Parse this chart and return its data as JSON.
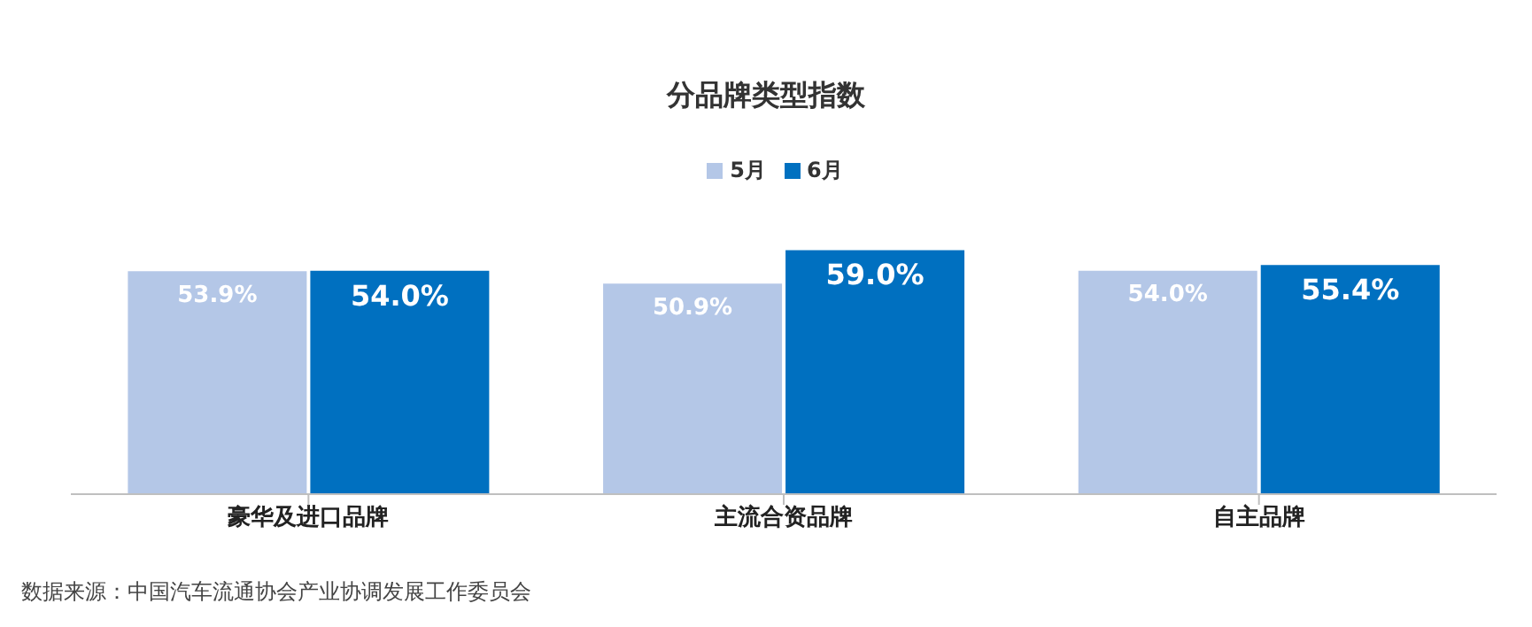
{
  "chart_data": {
    "type": "bar",
    "title": "分品牌类型指数",
    "categories": [
      "豪华及进口品牌",
      "主流合资品牌",
      "自主品牌"
    ],
    "series": [
      {
        "name": "5月",
        "color": "#b4c7e7",
        "values": [
          53.9,
          50.9,
          54.0
        ],
        "value_labels": [
          "53.9%",
          "50.9%",
          "54.0%"
        ]
      },
      {
        "name": "6月",
        "color": "#0070c0",
        "values": [
          54.0,
          59.0,
          55.4
        ],
        "value_labels": [
          "54.0%",
          "59.0%",
          "55.4%"
        ]
      }
    ],
    "legend": "top",
    "annotations": [
      "数据来源：中国汽车流通协会产业协调发展工作委员会"
    ]
  }
}
